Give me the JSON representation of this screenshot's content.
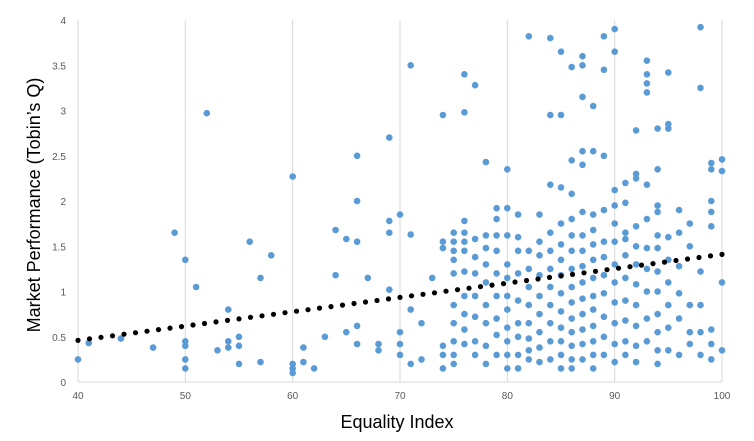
{
  "chart_data": {
    "type": "scatter",
    "title": "",
    "xlabel": "Equality Index",
    "ylabel": "Market Performance (Tobin’s Q)",
    "xlim": [
      40,
      100
    ],
    "ylim": [
      0,
      4
    ],
    "x_ticks": [
      40,
      50,
      60,
      70,
      80,
      90,
      100
    ],
    "y_ticks": [
      0,
      0.5,
      1,
      1.5,
      2,
      2.5,
      3,
      3.5,
      4
    ],
    "x_tick_labels": [
      "40",
      "50",
      "60",
      "70",
      "80",
      "90",
      "100"
    ],
    "y_tick_labels": [
      "0",
      "0.5",
      "1",
      "1.5",
      "2",
      "2.5",
      "3",
      "3.5",
      "4"
    ],
    "grid": {
      "vertical": true,
      "horizontal": false
    },
    "legend": "none",
    "point_color": "#5b9bd5",
    "trendline": {
      "type": "linear",
      "style": "dotted",
      "color": "#000000",
      "x": [
        40,
        100
      ],
      "y": [
        0.46,
        1.41
      ]
    },
    "series": [
      {
        "x": [
          40,
          41,
          44,
          47,
          49,
          50,
          50,
          50,
          50,
          50,
          51,
          52,
          53,
          54,
          54,
          54,
          55,
          55,
          55,
          56,
          57,
          57,
          58,
          60,
          60,
          60,
          60,
          61,
          61,
          62,
          63,
          64,
          64,
          65,
          65,
          66,
          66,
          66,
          66,
          66,
          67,
          68,
          68,
          69,
          69,
          69,
          69,
          70,
          70,
          70,
          70,
          71,
          71,
          71,
          71,
          72,
          72,
          73,
          74,
          74,
          74,
          74,
          74,
          74,
          75,
          75,
          75,
          75,
          75,
          75,
          75,
          75,
          75,
          75,
          76,
          76,
          76,
          76,
          76,
          76,
          76,
          76,
          76,
          76,
          76,
          77,
          77,
          77,
          77,
          77,
          77,
          77,
          77,
          78,
          78,
          78,
          78,
          78,
          78,
          78,
          78,
          78,
          79,
          79,
          79,
          79,
          79,
          79,
          79,
          79,
          79,
          80,
          80,
          80,
          80,
          80,
          80,
          80,
          80,
          80,
          80,
          80,
          81,
          81,
          81,
          81,
          81,
          81,
          81,
          81,
          81,
          82,
          82,
          82,
          82,
          82,
          82,
          82,
          82,
          82,
          83,
          83,
          83,
          83,
          83,
          83,
          83,
          83,
          83,
          84,
          84,
          84,
          84,
          84,
          84,
          84,
          84,
          84,
          84,
          84,
          85,
          85,
          85,
          85,
          85,
          85,
          85,
          85,
          85,
          85,
          85,
          85,
          85,
          86,
          86,
          86,
          86,
          86,
          86,
          86,
          86,
          86,
          86,
          86,
          86,
          86,
          86,
          87,
          87,
          87,
          87,
          87,
          87,
          87,
          87,
          87,
          87,
          87,
          87,
          87,
          87,
          87,
          88,
          88,
          88,
          88,
          88,
          88,
          88,
          88,
          88,
          88,
          88,
          88,
          88,
          89,
          89,
          89,
          89,
          89,
          89,
          89,
          89,
          89,
          89,
          89,
          90,
          90,
          90,
          90,
          90,
          90,
          90,
          90,
          90,
          90,
          90,
          90,
          91,
          91,
          91,
          91,
          91,
          91,
          91,
          91,
          91,
          91,
          92,
          92,
          92,
          92,
          92,
          92,
          92,
          92,
          92,
          92,
          92,
          93,
          93,
          93,
          93,
          93,
          93,
          93,
          93,
          93,
          93,
          93,
          94,
          94,
          94,
          94,
          94,
          94,
          94,
          94,
          94,
          94,
          94,
          94,
          95,
          95,
          95,
          95,
          95,
          95,
          95,
          95,
          95,
          96,
          96,
          96,
          96,
          96,
          96,
          97,
          97,
          97,
          97,
          97,
          98,
          98,
          98,
          98,
          98,
          98,
          99,
          99,
          99,
          99,
          99,
          99,
          99,
          99,
          100,
          100,
          100,
          100
        ],
        "y": [
          0.25,
          0.43,
          0.48,
          0.38,
          1.65,
          1.35,
          0.45,
          0.4,
          0.25,
          0.15,
          1.05,
          2.97,
          0.35,
          0.8,
          0.45,
          0.38,
          0.5,
          0.4,
          0.2,
          1.55,
          1.15,
          0.22,
          1.4,
          2.27,
          0.2,
          0.15,
          0.1,
          0.38,
          0.22,
          0.15,
          0.5,
          1.68,
          1.18,
          1.58,
          0.55,
          2.5,
          2.0,
          1.55,
          0.62,
          0.42,
          1.15,
          0.42,
          0.35,
          2.7,
          1.78,
          1.65,
          1.02,
          1.85,
          0.55,
          0.42,
          0.3,
          3.5,
          1.63,
          0.8,
          0.2,
          0.65,
          0.25,
          1.15,
          2.95,
          1.55,
          1.48,
          0.4,
          0.3,
          0.15,
          1.65,
          1.55,
          1.45,
          1.35,
          1.2,
          0.85,
          0.65,
          0.45,
          0.3,
          0.2,
          3.4,
          2.98,
          1.78,
          1.65,
          1.55,
          1.45,
          1.22,
          0.95,
          0.75,
          0.58,
          0.42,
          3.28,
          1.58,
          1.38,
          1.2,
          0.95,
          0.72,
          0.45,
          0.3,
          2.43,
          1.62,
          1.48,
          1.3,
          1.1,
          0.85,
          0.65,
          0.4,
          0.2,
          1.92,
          1.8,
          1.62,
          1.45,
          1.2,
          0.95,
          0.7,
          0.52,
          0.3,
          2.35,
          1.92,
          1.62,
          1.3,
          1.15,
          0.95,
          0.8,
          0.6,
          0.45,
          0.3,
          0.15,
          1.85,
          1.6,
          1.45,
          1.2,
          0.9,
          0.65,
          0.5,
          0.3,
          0.15,
          3.82,
          1.45,
          1.25,
          1.05,
          0.85,
          0.65,
          0.48,
          0.35,
          0.25,
          1.85,
          1.55,
          1.4,
          1.18,
          0.95,
          0.75,
          0.55,
          0.38,
          0.22,
          3.8,
          2.95,
          2.18,
          1.65,
          1.45,
          1.25,
          1.05,
          0.85,
          0.65,
          0.45,
          0.25,
          3.65,
          2.95,
          2.15,
          1.75,
          1.52,
          1.35,
          1.18,
          0.98,
          0.78,
          0.6,
          0.45,
          0.3,
          0.15,
          3.48,
          2.45,
          2.08,
          1.8,
          1.62,
          1.45,
          1.25,
          1.05,
          0.88,
          0.7,
          0.55,
          0.4,
          0.25,
          0.15,
          3.6,
          3.5,
          3.15,
          2.55,
          2.4,
          1.88,
          1.62,
          1.45,
          1.28,
          1.1,
          0.92,
          0.75,
          0.58,
          0.42,
          0.25,
          3.05,
          2.55,
          1.85,
          1.68,
          1.52,
          1.35,
          1.15,
          0.95,
          0.8,
          0.62,
          0.45,
          0.3,
          0.15,
          3.82,
          3.45,
          2.5,
          1.9,
          1.55,
          1.38,
          1.18,
          0.98,
          0.72,
          0.5,
          0.3,
          3.9,
          3.65,
          2.12,
          1.95,
          1.75,
          1.55,
          1.3,
          1.1,
          0.88,
          0.65,
          0.42,
          0.22,
          2.2,
          1.98,
          1.65,
          1.58,
          1.4,
          1.15,
          0.9,
          0.68,
          0.45,
          0.3,
          2.78,
          2.3,
          2.25,
          1.72,
          1.5,
          1.3,
          1.08,
          0.85,
          0.62,
          0.4,
          0.22,
          3.55,
          3.4,
          3.3,
          3.2,
          2.18,
          1.8,
          1.48,
          1.25,
          1.0,
          0.7,
          0.45,
          2.8,
          2.35,
          1.95,
          1.88,
          1.62,
          1.48,
          1.22,
          1.0,
          0.75,
          0.55,
          0.35,
          0.2,
          3.42,
          2.85,
          2.8,
          1.6,
          1.35,
          1.1,
          0.85,
          0.6,
          0.35,
          1.9,
          1.65,
          1.28,
          0.98,
          0.7,
          0.3,
          1.75,
          1.5,
          0.85,
          0.55,
          0.42,
          3.92,
          3.25,
          1.22,
          0.85,
          0.55,
          0.3,
          2.42,
          2.35,
          2.0,
          1.88,
          1.72,
          0.58,
          0.42,
          0.25,
          2.46,
          2.33,
          1.1,
          0.35
        ]
      }
    ]
  }
}
